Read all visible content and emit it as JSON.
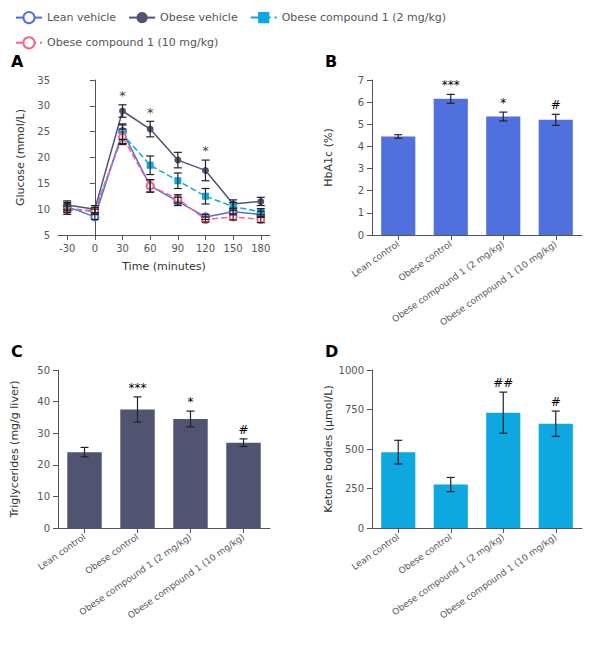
{
  "chart_data": [
    {
      "type": "line",
      "title": "A",
      "xlabel": "Time (minutes)",
      "ylabel": "Glucose (mmol/L)",
      "xlim": [
        -40,
        190
      ],
      "ylim": [
        5,
        35
      ],
      "xticks": [
        -30,
        0,
        30,
        60,
        90,
        120,
        150,
        180
      ],
      "yticks": [
        5,
        10,
        15,
        20,
        25,
        30,
        35
      ],
      "grid": false,
      "legend": "upper left",
      "series": [
        {
          "name": "Lean vehicle",
          "x": [
            -30,
            0,
            30,
            60,
            90,
            120,
            150,
            180
          ],
          "values": [
            10.5,
            8.5,
            25.0,
            14.5,
            11.5,
            8.5,
            9.5,
            9.0
          ],
          "yerr": [
            0.8,
            0.5,
            1.5,
            1.2,
            0.8,
            0.5,
            0.6,
            0.6
          ],
          "marker": "open_circle",
          "line_style": "solid"
        },
        {
          "name": "Obese vehicle",
          "x": [
            -30,
            0,
            30,
            60,
            90,
            120,
            150,
            180
          ],
          "values": [
            10.8,
            10.0,
            29.0,
            25.5,
            19.5,
            17.5,
            11.0,
            11.5
          ],
          "yerr": [
            0.8,
            0.7,
            1.2,
            1.5,
            1.5,
            2.0,
            0.8,
            0.8
          ],
          "marker": "circle",
          "line_style": "solid"
        },
        {
          "name": "Obese compound 1 (2 mg/kg)",
          "x": [
            -30,
            0,
            30,
            60,
            90,
            120,
            150,
            180
          ],
          "values": [
            10.2,
            9.5,
            24.5,
            18.5,
            15.5,
            12.5,
            10.5,
            9.5
          ],
          "yerr": [
            0.8,
            0.5,
            1.8,
            1.8,
            1.5,
            1.5,
            0.8,
            0.6
          ],
          "marker": "square",
          "line_style": "dashed"
        },
        {
          "name": "Obese compound 1 (10 mg/kg)",
          "x": [
            -30,
            0,
            30,
            60,
            90,
            120,
            150,
            180
          ],
          "values": [
            9.8,
            9.8,
            24.0,
            14.5,
            12.0,
            8.0,
            8.5,
            8.0
          ],
          "yerr": [
            0.8,
            0.5,
            1.5,
            1.2,
            0.8,
            0.5,
            0.6,
            0.6
          ],
          "marker": "open_circle",
          "line_style": "dashed"
        }
      ],
      "annotations": [
        {
          "x": 30,
          "y": 30.5,
          "text": "*"
        },
        {
          "x": 60,
          "y": 27.2,
          "text": "*"
        },
        {
          "x": 120,
          "y": 20.0,
          "text": "*"
        }
      ]
    },
    {
      "type": "bar",
      "title": "B",
      "ylabel": "HbA1c (%)",
      "categories": [
        "Lean control",
        "Obese control",
        "Obese compound 1 (2 mg/kg)",
        "Obese compound 1 (10 mg/kg)"
      ],
      "values": [
        4.45,
        6.15,
        5.35,
        5.2
      ],
      "yerr": [
        0.08,
        0.2,
        0.2,
        0.25
      ],
      "significance": [
        null,
        "***",
        "*",
        "#"
      ],
      "ylim": [
        0,
        7
      ],
      "yticks": [
        0,
        1,
        2,
        3,
        4,
        5,
        6,
        7
      ],
      "grid": false
    },
    {
      "type": "bar",
      "title": "C",
      "ylabel": "Triglycerides (mg/g liver)",
      "categories": [
        "Lean control",
        "Obese control",
        "Obese compound 1 (2 mg/kg)",
        "Obese compound 1 (10 mg/kg)"
      ],
      "values": [
        24.0,
        37.5,
        34.5,
        27.0
      ],
      "yerr": [
        1.5,
        4.0,
        2.5,
        1.2
      ],
      "significance": [
        null,
        "***",
        "*",
        "#"
      ],
      "ylim": [
        0,
        50
      ],
      "yticks": [
        0,
        10,
        20,
        30,
        40,
        50
      ],
      "grid": false
    },
    {
      "type": "bar",
      "title": "D",
      "ylabel": "Ketone bodies (μmol/L)",
      "categories": [
        "Lean control",
        "Obese control",
        "Obese compound 1 (2 mg/kg)",
        "Obese compound 1 (10 mg/kg)"
      ],
      "values": [
        480,
        275,
        730,
        660
      ],
      "yerr": [
        75,
        45,
        130,
        80
      ],
      "significance": [
        null,
        null,
        "##",
        "#"
      ],
      "ylim": [
        0,
        1000
      ],
      "yticks": [
        0,
        250,
        500,
        750,
        1000
      ],
      "grid": false
    }
  ]
}
